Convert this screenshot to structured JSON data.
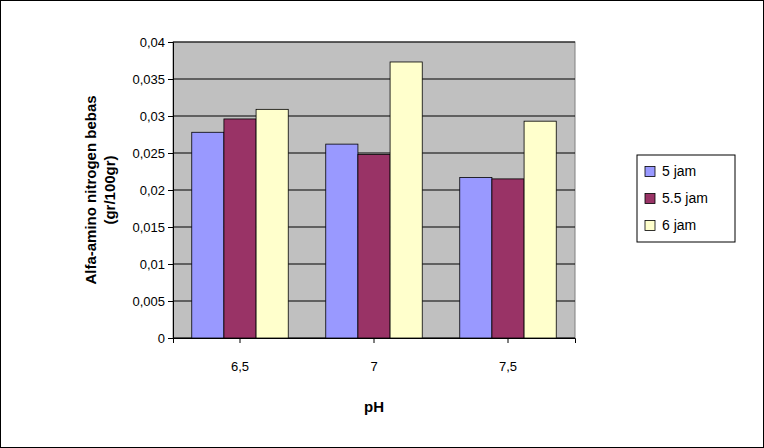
{
  "chart_data": {
    "type": "bar",
    "y_label": [
      "Alfa-amino nitrogen bebas",
      "(gr/100gr)"
    ],
    "x_label": "pH",
    "categories": [
      "6,5",
      "7",
      "7,5"
    ],
    "series": [
      {
        "name": "5 jam",
        "color": "#9999ff",
        "values": [
          0.0278,
          0.0262,
          0.0217
        ]
      },
      {
        "name": "5.5 jam",
        "color": "#993366",
        "values": [
          0.0296,
          0.0248,
          0.0215
        ]
      },
      {
        "name": "6 jam",
        "color": "#ffffcc",
        "values": [
          0.0309,
          0.0373,
          0.0293
        ]
      }
    ],
    "ylim": [
      0,
      0.04
    ],
    "yticks": [
      0,
      {
        "value": 0.005,
        "label": "0,005"
      },
      {
        "value": 0.01,
        "label": "0,01"
      },
      {
        "value": 0.015,
        "label": "0,015"
      },
      {
        "value": 0.02,
        "label": "0,02"
      },
      {
        "value": 0.025,
        "label": "0,025"
      },
      {
        "value": 0.03,
        "label": "0,03"
      },
      {
        "value": 0.035,
        "label": "0,035"
      },
      {
        "value": 0.04,
        "label": "0,04"
      }
    ],
    "grid": true,
    "legend": "right"
  }
}
